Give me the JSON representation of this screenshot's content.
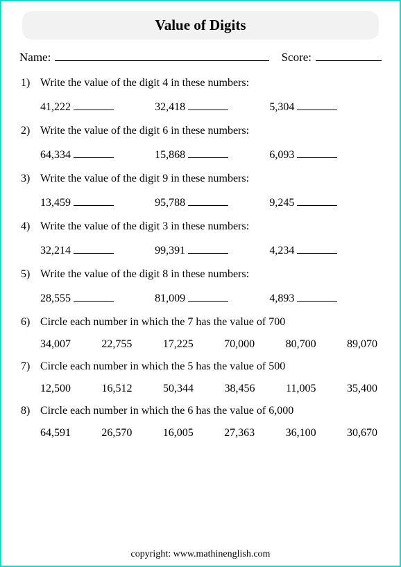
{
  "title": "Value of Digits",
  "name_label": "Name:",
  "score_label": "Score:",
  "problems": [
    {
      "n": "1)",
      "type": "write",
      "prompt": "Write the value of the digit 4 in these numbers:",
      "items": [
        "41,222",
        "32,418",
        "5,304"
      ]
    },
    {
      "n": "2)",
      "type": "write",
      "prompt": "Write the value of the digit 6 in these numbers:",
      "items": [
        "64,334",
        "15,868",
        "6,093"
      ]
    },
    {
      "n": "3)",
      "type": "write",
      "prompt": "Write the value of the digit 9 in these numbers:",
      "items": [
        "13,459",
        "95,788",
        "9,245"
      ]
    },
    {
      "n": "4)",
      "type": "write",
      "prompt": "Write the value of the digit 3 in these numbers:",
      "items": [
        "32,214",
        "99,391",
        "4,234"
      ]
    },
    {
      "n": "5)",
      "type": "write",
      "prompt": "Write the value of the digit 8 in these numbers:",
      "items": [
        "28,555",
        "81,009",
        "4,893"
      ]
    },
    {
      "n": "6)",
      "type": "circle",
      "prompt": "Circle each number in which the 7 has the value of 700",
      "items": [
        "34,007",
        "22,755",
        "17,225",
        "70,000",
        "80,700",
        "89,070"
      ]
    },
    {
      "n": "7)",
      "type": "circle",
      "prompt": "Circle each number in which the 5 has the value of 500",
      "items": [
        "12,500",
        "16,512",
        "50,344",
        "38,456",
        "11,005",
        "35,400"
      ]
    },
    {
      "n": "8)",
      "type": "circle",
      "prompt": "Circle each number in which the 6 has the value of 6,000",
      "items": [
        "64,591",
        "26,570",
        "16,005",
        "27,363",
        "36,100",
        "30,670"
      ]
    }
  ],
  "footer": "copyright:    www.mathinenglish.com",
  "colors": {
    "border": "#1fd4c9",
    "pill_bg": "#f2f2f2",
    "text": "#000000",
    "page_bg": "#ffffff"
  }
}
